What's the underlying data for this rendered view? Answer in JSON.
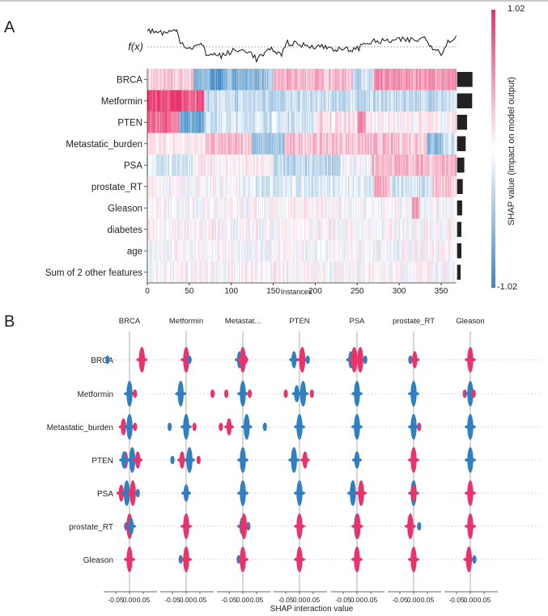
{
  "panels": {
    "a": "A",
    "b": "B"
  },
  "chart_data": [
    {
      "type": "heatmap",
      "features": [
        "BRCA",
        "Metformin",
        "PTEN",
        "Metastatic_burden",
        "PSA",
        "prostate_RT",
        "Gleason",
        "diabetes",
        "age",
        "Sum of 2 other features"
      ],
      "xlabel": "Instances",
      "xticks": [
        0,
        50,
        100,
        150,
        200,
        250,
        300,
        350
      ],
      "n_instances": 368,
      "fx_label": "f(x)",
      "fx_series": {
        "instances": [
          0,
          10,
          20,
          35,
          40,
          50,
          65,
          70,
          90,
          100,
          120,
          130,
          140,
          150,
          160,
          165,
          180,
          200,
          220,
          230,
          250,
          260,
          280,
          300,
          320,
          330,
          340,
          350,
          360,
          368
        ],
        "values": [
          0.95,
          0.85,
          0.8,
          0.9,
          0.25,
          -0.06,
          0.12,
          -0.38,
          -0.5,
          -0.25,
          -0.19,
          -0.69,
          -0.38,
          -0.12,
          -0.5,
          0.25,
          0.12,
          0.06,
          -0.06,
          -0.19,
          -0.12,
          0.25,
          0.31,
          0.38,
          0.38,
          0.5,
          0,
          -0.31,
          0.38,
          0.62
        ]
      },
      "colorbar": {
        "label": "SHAP value (impact on model output)",
        "max": "1.02",
        "min": "-1.02",
        "vmin": -1.02,
        "vmax": 1.02,
        "high_color": "#e8336b",
        "low_color": "#3a87c4",
        "mid_color": "#ffffff"
      },
      "segments": [
        [
          [
            0,
            15,
            0.2
          ],
          [
            15,
            55,
            0.25
          ],
          [
            55,
            75,
            -0.6
          ],
          [
            75,
            90,
            -0.85
          ],
          [
            90,
            135,
            -0.6
          ],
          [
            135,
            150,
            -0.5
          ],
          [
            150,
            245,
            0.35
          ],
          [
            245,
            270,
            -0.3
          ],
          [
            270,
            368,
            0.5
          ]
        ],
        [
          [
            0,
            40,
            0.95
          ],
          [
            40,
            68,
            0.85
          ],
          [
            68,
            368,
            -0.3
          ]
        ],
        [
          [
            0,
            38,
            0.7
          ],
          [
            38,
            68,
            -0.7
          ],
          [
            68,
            200,
            -0.2
          ],
          [
            200,
            250,
            0.15
          ],
          [
            250,
            260,
            0.5
          ],
          [
            260,
            368,
            0.05
          ]
        ],
        [
          [
            0,
            68,
            0.1
          ],
          [
            68,
            125,
            0.3
          ],
          [
            125,
            163,
            -0.5
          ],
          [
            163,
            333,
            0.3
          ],
          [
            333,
            352,
            -0.55
          ],
          [
            352,
            368,
            -0.2
          ]
        ],
        [
          [
            0,
            55,
            -0.2
          ],
          [
            55,
            150,
            0.05
          ],
          [
            150,
            230,
            -0.35
          ],
          [
            230,
            268,
            -0.1
          ],
          [
            268,
            368,
            0.35
          ]
        ],
        [
          [
            0,
            110,
            0.0
          ],
          [
            110,
            270,
            -0.15
          ],
          [
            270,
            290,
            0.35
          ],
          [
            290,
            340,
            -0.2
          ],
          [
            340,
            368,
            0.3
          ]
        ],
        [
          [
            0,
            315,
            0.0
          ],
          [
            315,
            325,
            0.5
          ],
          [
            325,
            368,
            0.0
          ]
        ],
        [
          [
            0,
            368,
            0.0
          ]
        ],
        [
          [
            0,
            368,
            0.0
          ]
        ],
        [
          [
            0,
            368,
            0.0
          ]
        ]
      ],
      "mean_abs_shap_relative": [
        1.0,
        0.98,
        0.65,
        0.56,
        0.47,
        0.37,
        0.33,
        0.28,
        0.28,
        0.23
      ]
    },
    {
      "type": "scatter",
      "subtype": "beeswarm-matrix",
      "xlabel": "SHAP interaction value",
      "xticks": [
        "-0.05",
        "0.00",
        "0.05"
      ],
      "columns": [
        "BRCA",
        "Metformin",
        "Metastat...",
        "PTEN",
        "PSA",
        "prostate_RT",
        "Gleason"
      ],
      "rows": [
        "BRCA",
        "Metformin",
        "Metastatic_burden",
        "PTEN",
        "PSA",
        "prostate_RT",
        "Gleason"
      ],
      "colors": {
        "r": "#e8336b",
        "b": "#2f7fc1"
      },
      "clusters": [
        [
          [
            [
              -0.08,
              "b",
              1
            ],
            [
              0.045,
              "r",
              3
            ]
          ],
          [
            [
              0,
              "r",
              3
            ],
            [
              0.012,
              "b",
              1
            ]
          ],
          [
            [
              -0.012,
              "b",
              2
            ],
            [
              0,
              "r",
              3
            ],
            [
              0.01,
              "r",
              1
            ]
          ],
          [
            [
              -0.02,
              "b",
              2
            ],
            [
              0.01,
              "r",
              3
            ],
            [
              0.03,
              "b",
              1
            ]
          ],
          [
            [
              -0.022,
              "b",
              2
            ],
            [
              -0.01,
              "r",
              3
            ],
            [
              0.012,
              "r",
              3
            ],
            [
              0.03,
              "b",
              1
            ]
          ],
          [
            [
              -0.012,
              "b",
              1
            ],
            [
              0.004,
              "r",
              2
            ]
          ],
          [
            [
              0,
              "r",
              3
            ]
          ]
        ],
        [
          [
            [
              0,
              "b",
              3
            ],
            [
              0.02,
              "r",
              1
            ]
          ],
          [
            [
              -0.02,
              "b",
              3
            ]
          ],
          [
            [
              -0.11,
              "r",
              1
            ],
            [
              -0.06,
              "r",
              1
            ],
            [
              0,
              "b",
              3
            ],
            [
              0.025,
              "r",
              1
            ]
          ],
          [
            [
              -0.05,
              "r",
              1
            ],
            [
              -0.01,
              "b",
              2
            ],
            [
              0.013,
              "b",
              3
            ],
            [
              0.045,
              "r",
              1
            ]
          ],
          [
            [
              0,
              "b",
              3
            ]
          ],
          [
            [
              0,
              "b",
              3
            ]
          ],
          [
            [
              -0.02,
              "r",
              1
            ],
            [
              0,
              "b",
              3
            ],
            [
              0.012,
              "r",
              1
            ]
          ]
        ],
        [
          [
            [
              -0.022,
              "r",
              2
            ],
            [
              0,
              "b",
              3
            ],
            [
              0.02,
              "r",
              1
            ]
          ],
          [
            [
              -0.06,
              "b",
              1
            ],
            [
              0,
              "b",
              3
            ],
            [
              0.03,
              "r",
              1
            ]
          ],
          [
            [
              -0.08,
              "r",
              1
            ],
            [
              -0.05,
              "r",
              2
            ],
            [
              0.014,
              "b",
              3
            ],
            [
              0.08,
              "b",
              1
            ]
          ],
          [
            [
              0,
              "r",
              1
            ],
            [
              0,
              "b",
              3
            ]
          ],
          [
            [
              0,
              "r",
              1
            ],
            [
              0,
              "b",
              3
            ]
          ],
          [
            [
              0.02,
              "r",
              1
            ],
            [
              0,
              "b",
              3
            ]
          ],
          [
            [
              0,
              "r",
              2
            ],
            [
              0,
              "b",
              3
            ]
          ]
        ],
        [
          [
            [
              -0.015,
              "r",
              2
            ],
            [
              -0.02,
              "b",
              2
            ],
            [
              0.01,
              "b",
              3
            ],
            [
              0.03,
              "r",
              2
            ]
          ],
          [
            [
              -0.05,
              "b",
              1
            ],
            [
              -0.015,
              "r",
              2
            ],
            [
              0.012,
              "b",
              3
            ],
            [
              0.045,
              "r",
              1
            ]
          ],
          [
            [
              0,
              "b",
              3
            ]
          ],
          [
            [
              -0.02,
              "b",
              3
            ],
            [
              0.02,
              "r",
              2
            ]
          ],
          [
            [
              0,
              "r",
              2
            ],
            [
              0,
              "b",
              2
            ]
          ],
          [
            [
              0,
              "r",
              3
            ]
          ],
          [
            [
              0,
              "b",
              3
            ]
          ]
        ],
        [
          [
            [
              -0.03,
              "r",
              2
            ],
            [
              -0.01,
              "b",
              3
            ],
            [
              0.012,
              "r",
              3
            ],
            [
              0.03,
              "b",
              1
            ]
          ],
          [
            [
              0,
              "r",
              2
            ],
            [
              0,
              "b",
              2
            ]
          ],
          [
            [
              0,
              "b",
              3
            ]
          ],
          [
            [
              0,
              "r",
              2
            ],
            [
              0,
              "b",
              3
            ]
          ],
          [
            [
              -0.015,
              "b",
              3
            ],
            [
              0.015,
              "r",
              3
            ]
          ],
          [
            [
              0,
              "b",
              3
            ],
            [
              0,
              "r",
              2
            ]
          ],
          [
            [
              0,
              "r",
              3
            ]
          ]
        ],
        [
          [
            [
              -0.012,
              "b",
              1
            ],
            [
              0,
              "r",
              3
            ],
            [
              0.006,
              "b",
              2
            ]
          ],
          [
            [
              0,
              "r",
              3
            ]
          ],
          [
            [
              0.02,
              "b",
              1
            ],
            [
              -0.003,
              "b",
              2
            ],
            [
              0.004,
              "r",
              3
            ]
          ],
          [
            [
              0,
              "r",
              3
            ]
          ],
          [
            [
              0,
              "b",
              3
            ],
            [
              0.002,
              "r",
              3
            ]
          ],
          [
            [
              -0.012,
              "r",
              3
            ],
            [
              0.02,
              "b",
              1
            ]
          ],
          [
            [
              0,
              "r",
              3
            ]
          ]
        ],
        [
          [
            [
              0,
              "r",
              3
            ]
          ],
          [
            [
              -0.02,
              "b",
              1
            ],
            [
              0,
              "r",
              3
            ]
          ],
          [
            [
              -0.015,
              "b",
              1
            ],
            [
              0,
              "r",
              3
            ]
          ],
          [
            [
              0,
              "r",
              3
            ]
          ],
          [
            [
              0,
              "r",
              3
            ]
          ],
          [
            [
              0,
              "r",
              3
            ]
          ],
          [
            [
              -0.005,
              "r",
              3
            ],
            [
              0.015,
              "b",
              1
            ]
          ]
        ]
      ]
    }
  ]
}
